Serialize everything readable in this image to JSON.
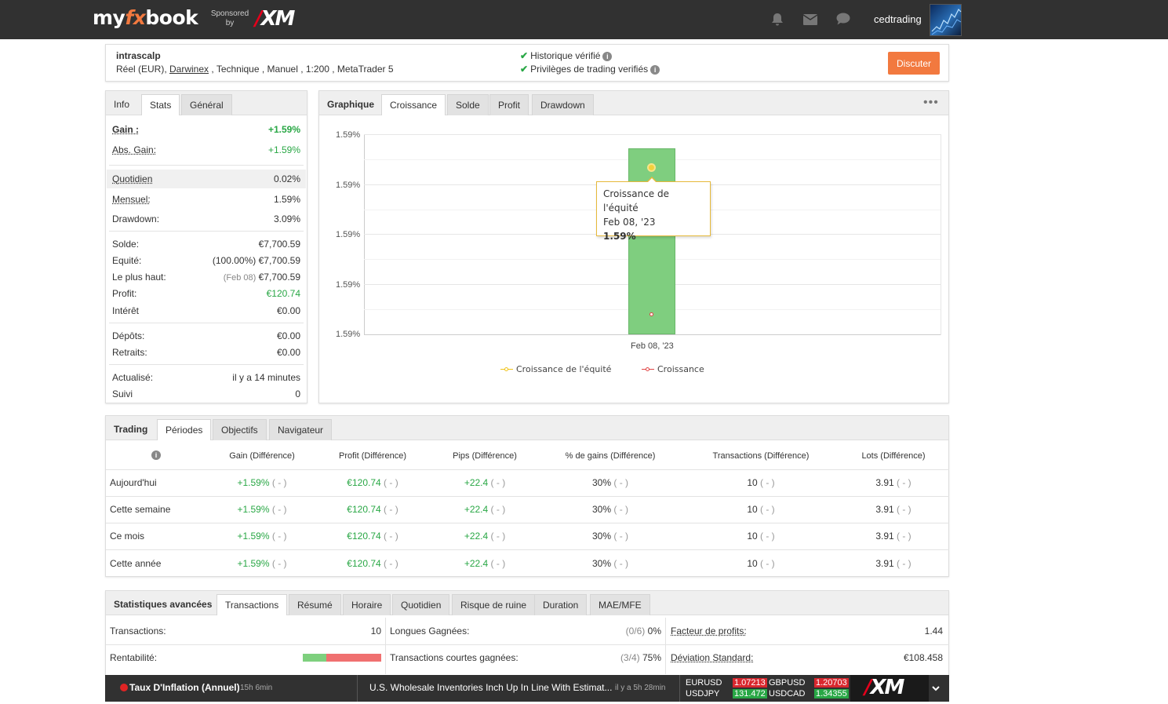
{
  "header": {
    "logo_prefix": "my",
    "logo_fx": "fx",
    "logo_suffix": "book",
    "sponsored_line1": "Sponsored",
    "sponsored_line2": "by",
    "sponsor": "XM",
    "username": "cedtrading"
  },
  "account": {
    "name": "intrascalp",
    "meta_pre": "Réel (EUR), ",
    "broker": "Darwinex",
    "meta_post": " , Technique , Manuel , 1:200 , MetaTrader 5",
    "verify1": "Historique vérifié",
    "verify2": "Privilèges de trading verifiés",
    "discuss": "Discuter"
  },
  "left_tabs": [
    "Info",
    "Stats",
    "Général"
  ],
  "stats": {
    "gain_label": "Gain :",
    "gain": "+1.59%",
    "abs_gain_label": "Abs. Gain:",
    "abs_gain": "+1.59%",
    "daily_label": "Quotidien",
    "daily": "0.02%",
    "monthly_label": "Mensuel:",
    "monthly": "1.59%",
    "drawdown_label": "Drawdown:",
    "drawdown": "3.09%",
    "balance_label": "Solde:",
    "balance": "€7,700.59",
    "equity_label": "Equité:",
    "equity_pct": "(100.00%)",
    "equity": "€7,700.59",
    "high_label": "Le plus haut:",
    "high_date": "(Feb 08)",
    "high": "€7,700.59",
    "profit_label": "Profit:",
    "profit": "€120.74",
    "interest_label": "Intérêt",
    "interest": "€0.00",
    "deposits_label": "Dépôts:",
    "deposits": "€0.00",
    "withdrawals_label": "Retraits:",
    "withdrawals": "€0.00",
    "updated_label": "Actualisé:",
    "updated": "il y a 14 minutes",
    "followed_label": "Suivi",
    "followed": "0"
  },
  "chart_tabs": [
    "Graphique",
    "Croissance",
    "Solde",
    "Profit",
    "Drawdown"
  ],
  "chart_data": {
    "type": "bar",
    "categories": [
      "Feb 08, '23"
    ],
    "series": [
      {
        "name": "Croissance de l'équité",
        "values": [
          1.59
        ],
        "color": "#f0c419"
      },
      {
        "name": "Croissance",
        "values": [
          1.59
        ],
        "color": "#e04545"
      }
    ],
    "yticks": [
      "1.59%",
      "1.59%",
      "1.59%",
      "1.59%",
      "1.59%"
    ],
    "bar_color": "#7fce7f",
    "tooltip": {
      "title": "Croissance de l'équité",
      "date": "Feb 08, '23",
      "value": "1.59%"
    }
  },
  "periods_tabs": [
    "Trading",
    "Périodes",
    "Objectifs",
    "Navigateur"
  ],
  "periods": {
    "headers": [
      "Gain (Différence)",
      "Profit (Différence)",
      "Pips (Différence)",
      "% de gains (Différence)",
      "Transactions (Différence)",
      "Lots (Différence)"
    ],
    "rows": [
      {
        "label": "Aujourd'hui",
        "gain": "+1.59%",
        "profit": "€120.74",
        "pips": "+22.4",
        "wins": "30%",
        "trades": "10",
        "lots": "3.91",
        "diff": "( - )"
      },
      {
        "label": "Cette semaine",
        "gain": "+1.59%",
        "profit": "€120.74",
        "pips": "+22.4",
        "wins": "30%",
        "trades": "10",
        "lots": "3.91",
        "diff": "( - )"
      },
      {
        "label": "Ce mois",
        "gain": "+1.59%",
        "profit": "€120.74",
        "pips": "+22.4",
        "wins": "30%",
        "trades": "10",
        "lots": "3.91",
        "diff": "( - )"
      },
      {
        "label": "Cette année",
        "gain": "+1.59%",
        "profit": "€120.74",
        "pips": "+22.4",
        "wins": "30%",
        "trades": "10",
        "lots": "3.91",
        "diff": "( - )"
      }
    ]
  },
  "adv_tabs": [
    "Statistiques avancées",
    "Transactions",
    "Résumé",
    "Horaire",
    "Quotidien",
    "Risque de ruine",
    "Duration",
    "MAE/MFE"
  ],
  "adv": {
    "trades_label": "Transactions:",
    "trades": "10",
    "profitability_label": "Rentabilité:",
    "profitability_win_fraction": 0.3,
    "long_won_label": "Longues Gagnées:",
    "long_won_ratio": "(0/6)",
    "long_won": "0%",
    "short_won_label": "Transactions courtes gagnées:",
    "short_won_ratio": "(3/4)",
    "short_won": "75%",
    "profit_factor_label": "Facteur de profits:",
    "profit_factor": "1.44",
    "std_dev_label": "Déviation Standard:",
    "std_dev": "€108.458"
  },
  "ticker": {
    "event": "Taux D'Inflation (Annuel)",
    "event_time": "15h 6min",
    "news": "U.S. Wholesale Inventories Inch Up In Line With Estimat...",
    "news_time": "il y a 5h 28min",
    "quotes": [
      {
        "pair": "EURUSD",
        "price": "1.07213",
        "color": "#d9272e"
      },
      {
        "pair": "GBPUSD",
        "price": "1.20703",
        "color": "#d9272e"
      },
      {
        "pair": "USDJPY",
        "price": "131.472",
        "color": "#28a745"
      },
      {
        "pair": "USDCAD",
        "price": "1.34355",
        "color": "#28a745"
      }
    ],
    "sponsor": "XM"
  }
}
